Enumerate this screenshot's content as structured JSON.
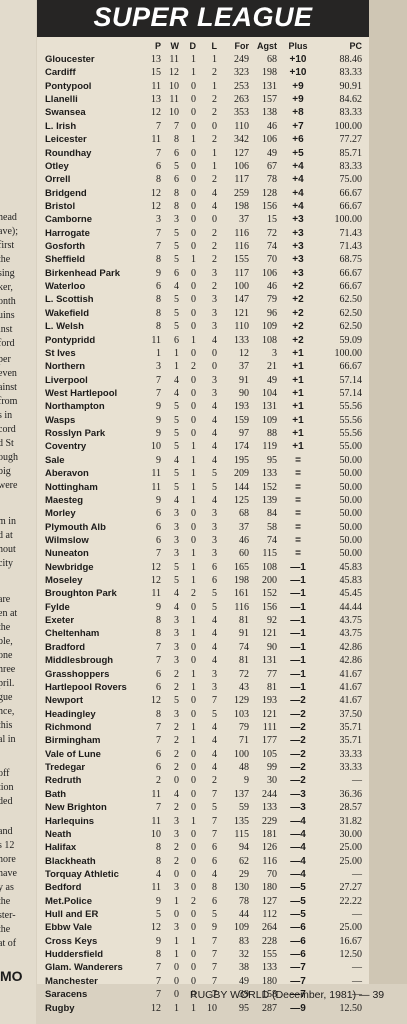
{
  "banner_title": "SUPER LEAGUE",
  "columns": {
    "p": "P",
    "w": "W",
    "d": "D",
    "l": "L",
    "for": "For",
    "agst": "Agst",
    "plus": "Plus",
    "pc": "PC"
  },
  "rows": [
    {
      "team": "Gloucester",
      "p": "13",
      "w": "11",
      "d": "1",
      "l": "1",
      "for": "249",
      "agst": "68",
      "plus": "+10",
      "pc": "88.46"
    },
    {
      "team": "Cardiff",
      "p": "15",
      "w": "12",
      "d": "1",
      "l": "2",
      "for": "323",
      "agst": "198",
      "plus": "+10",
      "pc": "83.33"
    },
    {
      "team": "Pontypool",
      "p": "11",
      "w": "10",
      "d": "0",
      "l": "1",
      "for": "253",
      "agst": "131",
      "plus": "+9",
      "pc": "90.91"
    },
    {
      "team": "Llanelli",
      "p": "13",
      "w": "11",
      "d": "0",
      "l": "2",
      "for": "263",
      "agst": "157",
      "plus": "+9",
      "pc": "84.62"
    },
    {
      "team": "Swansea",
      "p": "12",
      "w": "10",
      "d": "0",
      "l": "2",
      "for": "353",
      "agst": "138",
      "plus": "+8",
      "pc": "83.33"
    },
    {
      "team": "L. Irish",
      "p": "7",
      "w": "7",
      "d": "0",
      "l": "0",
      "for": "110",
      "agst": "46",
      "plus": "+7",
      "pc": "100.00"
    },
    {
      "team": "Leicester",
      "p": "11",
      "w": "8",
      "d": "1",
      "l": "2",
      "for": "342",
      "agst": "106",
      "plus": "+6",
      "pc": "77.27"
    },
    {
      "team": "Roundhay",
      "p": "7",
      "w": "6",
      "d": "0",
      "l": "1",
      "for": "127",
      "agst": "49",
      "plus": "+5",
      "pc": "85.71"
    },
    {
      "team": "Otley",
      "p": "6",
      "w": "5",
      "d": "0",
      "l": "1",
      "for": "106",
      "agst": "67",
      "plus": "+4",
      "pc": "83.33"
    },
    {
      "team": "Orrell",
      "p": "8",
      "w": "6",
      "d": "0",
      "l": "2",
      "for": "117",
      "agst": "78",
      "plus": "+4",
      "pc": "75.00"
    },
    {
      "team": "Bridgend",
      "p": "12",
      "w": "8",
      "d": "0",
      "l": "4",
      "for": "259",
      "agst": "128",
      "plus": "+4",
      "pc": "66.67"
    },
    {
      "team": "Bristol",
      "p": "12",
      "w": "8",
      "d": "0",
      "l": "4",
      "for": "198",
      "agst": "156",
      "plus": "+4",
      "pc": "66.67"
    },
    {
      "team": "Camborne",
      "p": "3",
      "w": "3",
      "d": "0",
      "l": "0",
      "for": "37",
      "agst": "15",
      "plus": "+3",
      "pc": "100.00"
    },
    {
      "team": "Harrogate",
      "p": "7",
      "w": "5",
      "d": "0",
      "l": "2",
      "for": "116",
      "agst": "72",
      "plus": "+3",
      "pc": "71.43"
    },
    {
      "team": "Gosforth",
      "p": "7",
      "w": "5",
      "d": "0",
      "l": "2",
      "for": "116",
      "agst": "74",
      "plus": "+3",
      "pc": "71.43"
    },
    {
      "team": "Sheffield",
      "p": "8",
      "w": "5",
      "d": "1",
      "l": "2",
      "for": "155",
      "agst": "70",
      "plus": "+3",
      "pc": "68.75"
    },
    {
      "team": "Birkenhead Park",
      "p": "9",
      "w": "6",
      "d": "0",
      "l": "3",
      "for": "117",
      "agst": "106",
      "plus": "+3",
      "pc": "66.67"
    },
    {
      "team": "Waterloo",
      "p": "6",
      "w": "4",
      "d": "0",
      "l": "2",
      "for": "100",
      "agst": "46",
      "plus": "+2",
      "pc": "66.67"
    },
    {
      "team": "L. Scottish",
      "p": "8",
      "w": "5",
      "d": "0",
      "l": "3",
      "for": "147",
      "agst": "79",
      "plus": "+2",
      "pc": "62.50"
    },
    {
      "team": "Wakefield",
      "p": "8",
      "w": "5",
      "d": "0",
      "l": "3",
      "for": "121",
      "agst": "96",
      "plus": "+2",
      "pc": "62.50"
    },
    {
      "team": "L. Welsh",
      "p": "8",
      "w": "5",
      "d": "0",
      "l": "3",
      "for": "110",
      "agst": "109",
      "plus": "+2",
      "pc": "62.50"
    },
    {
      "team": "Pontypridd",
      "p": "11",
      "w": "6",
      "d": "1",
      "l": "4",
      "for": "133",
      "agst": "108",
      "plus": "+2",
      "pc": "59.09"
    },
    {
      "team": "St Ives",
      "p": "1",
      "w": "1",
      "d": "0",
      "l": "0",
      "for": "12",
      "agst": "3",
      "plus": "+1",
      "pc": "100.00"
    },
    {
      "team": "Northern",
      "p": "3",
      "w": "1",
      "d": "2",
      "l": "0",
      "for": "37",
      "agst": "21",
      "plus": "+1",
      "pc": "66.67"
    },
    {
      "team": "Liverpool",
      "p": "7",
      "w": "4",
      "d": "0",
      "l": "3",
      "for": "91",
      "agst": "49",
      "plus": "+1",
      "pc": "57.14"
    },
    {
      "team": "West Hartlepool",
      "p": "7",
      "w": "4",
      "d": "0",
      "l": "3",
      "for": "90",
      "agst": "104",
      "plus": "+1",
      "pc": "57.14"
    },
    {
      "team": "Northampton",
      "p": "9",
      "w": "5",
      "d": "0",
      "l": "4",
      "for": "193",
      "agst": "131",
      "plus": "+1",
      "pc": "55.56"
    },
    {
      "team": "Wasps",
      "p": "9",
      "w": "5",
      "d": "0",
      "l": "4",
      "for": "159",
      "agst": "109",
      "plus": "+1",
      "pc": "55.56"
    },
    {
      "team": "Rosslyn Park",
      "p": "9",
      "w": "5",
      "d": "0",
      "l": "4",
      "for": "97",
      "agst": "88",
      "plus": "+1",
      "pc": "55.56"
    },
    {
      "team": "Coventry",
      "p": "10",
      "w": "5",
      "d": "1",
      "l": "4",
      "for": "174",
      "agst": "119",
      "plus": "+1",
      "pc": "55.00"
    },
    {
      "team": "Sale",
      "p": "9",
      "w": "4",
      "d": "1",
      "l": "4",
      "for": "195",
      "agst": "95",
      "plus": "=",
      "pc": "50.00"
    },
    {
      "team": "Aberavon",
      "p": "11",
      "w": "5",
      "d": "1",
      "l": "5",
      "for": "209",
      "agst": "133",
      "plus": "=",
      "pc": "50.00"
    },
    {
      "team": "Nottingham",
      "p": "11",
      "w": "5",
      "d": "1",
      "l": "5",
      "for": "144",
      "agst": "152",
      "plus": "=",
      "pc": "50.00"
    },
    {
      "team": "Maesteg",
      "p": "9",
      "w": "4",
      "d": "1",
      "l": "4",
      "for": "125",
      "agst": "139",
      "plus": "=",
      "pc": "50.00"
    },
    {
      "team": "Morley",
      "p": "6",
      "w": "3",
      "d": "0",
      "l": "3",
      "for": "68",
      "agst": "84",
      "plus": "=",
      "pc": "50.00"
    },
    {
      "team": "Plymouth Alb",
      "p": "6",
      "w": "3",
      "d": "0",
      "l": "3",
      "for": "37",
      "agst": "58",
      "plus": "=",
      "pc": "50.00"
    },
    {
      "team": "Wilmslow",
      "p": "6",
      "w": "3",
      "d": "0",
      "l": "3",
      "for": "46",
      "agst": "74",
      "plus": "=",
      "pc": "50.00"
    },
    {
      "team": "Nuneaton",
      "p": "7",
      "w": "3",
      "d": "1",
      "l": "3",
      "for": "60",
      "agst": "115",
      "plus": "=",
      "pc": "50.00"
    },
    {
      "team": "Newbridge",
      "p": "12",
      "w": "5",
      "d": "1",
      "l": "6",
      "for": "165",
      "agst": "108",
      "plus": "—1",
      "pc": "45.83"
    },
    {
      "team": "Moseley",
      "p": "12",
      "w": "5",
      "d": "1",
      "l": "6",
      "for": "198",
      "agst": "200",
      "plus": "—1",
      "pc": "45.83"
    },
    {
      "team": "Broughton Park",
      "p": "11",
      "w": "4",
      "d": "2",
      "l": "5",
      "for": "161",
      "agst": "152",
      "plus": "—1",
      "pc": "45.45"
    },
    {
      "team": "Fylde",
      "p": "9",
      "w": "4",
      "d": "0",
      "l": "5",
      "for": "116",
      "agst": "156",
      "plus": "—1",
      "pc": "44.44"
    },
    {
      "team": "Exeter",
      "p": "8",
      "w": "3",
      "d": "1",
      "l": "4",
      "for": "81",
      "agst": "92",
      "plus": "—1",
      "pc": "43.75"
    },
    {
      "team": "Cheltenham",
      "p": "8",
      "w": "3",
      "d": "1",
      "l": "4",
      "for": "91",
      "agst": "121",
      "plus": "—1",
      "pc": "43.75"
    },
    {
      "team": "Bradford",
      "p": "7",
      "w": "3",
      "d": "0",
      "l": "4",
      "for": "74",
      "agst": "90",
      "plus": "—1",
      "pc": "42.86"
    },
    {
      "team": "Middlesbrough",
      "p": "7",
      "w": "3",
      "d": "0",
      "l": "4",
      "for": "81",
      "agst": "131",
      "plus": "—1",
      "pc": "42.86"
    },
    {
      "team": "Grasshoppers",
      "p": "6",
      "w": "2",
      "d": "1",
      "l": "3",
      "for": "72",
      "agst": "77",
      "plus": "—1",
      "pc": "41.67"
    },
    {
      "team": "Hartlepool Rovers",
      "p": "6",
      "w": "2",
      "d": "1",
      "l": "3",
      "for": "43",
      "agst": "81",
      "plus": "—1",
      "pc": "41.67"
    },
    {
      "team": "Newport",
      "p": "12",
      "w": "5",
      "d": "0",
      "l": "7",
      "for": "129",
      "agst": "193",
      "plus": "—2",
      "pc": "41.67"
    },
    {
      "team": "Headingley",
      "p": "8",
      "w": "3",
      "d": "0",
      "l": "5",
      "for": "103",
      "agst": "121",
      "plus": "—2",
      "pc": "37.50"
    },
    {
      "team": "Richmond",
      "p": "7",
      "w": "2",
      "d": "1",
      "l": "4",
      "for": "79",
      "agst": "111",
      "plus": "—2",
      "pc": "35.71"
    },
    {
      "team": "Birmingham",
      "p": "7",
      "w": "2",
      "d": "1",
      "l": "4",
      "for": "71",
      "agst": "177",
      "plus": "—2",
      "pc": "35.71"
    },
    {
      "team": "Vale of Lune",
      "p": "6",
      "w": "2",
      "d": "0",
      "l": "4",
      "for": "100",
      "agst": "105",
      "plus": "—2",
      "pc": "33.33"
    },
    {
      "team": "Tredegar",
      "p": "6",
      "w": "2",
      "d": "0",
      "l": "4",
      "for": "48",
      "agst": "99",
      "plus": "—2",
      "pc": "33.33"
    },
    {
      "team": "Redruth",
      "p": "2",
      "w": "0",
      "d": "0",
      "l": "2",
      "for": "9",
      "agst": "30",
      "plus": "—2",
      "pc": "—"
    },
    {
      "team": "Bath",
      "p": "11",
      "w": "4",
      "d": "0",
      "l": "7",
      "for": "137",
      "agst": "244",
      "plus": "—3",
      "pc": "36.36"
    },
    {
      "team": "New Brighton",
      "p": "7",
      "w": "2",
      "d": "0",
      "l": "5",
      "for": "59",
      "agst": "133",
      "plus": "—3",
      "pc": "28.57"
    },
    {
      "team": "Harlequins",
      "p": "11",
      "w": "3",
      "d": "1",
      "l": "7",
      "for": "135",
      "agst": "229",
      "plus": "—4",
      "pc": "31.82"
    },
    {
      "team": "Neath",
      "p": "10",
      "w": "3",
      "d": "0",
      "l": "7",
      "for": "115",
      "agst": "181",
      "plus": "—4",
      "pc": "30.00"
    },
    {
      "team": "Halifax",
      "p": "8",
      "w": "2",
      "d": "0",
      "l": "6",
      "for": "94",
      "agst": "126",
      "plus": "—4",
      "pc": "25.00"
    },
    {
      "team": "Blackheath",
      "p": "8",
      "w": "2",
      "d": "0",
      "l": "6",
      "for": "62",
      "agst": "116",
      "plus": "—4",
      "pc": "25.00"
    },
    {
      "team": "Torquay Athletic",
      "p": "4",
      "w": "0",
      "d": "0",
      "l": "4",
      "for": "29",
      "agst": "70",
      "plus": "—4",
      "pc": "—"
    },
    {
      "team": "Bedford",
      "p": "11",
      "w": "3",
      "d": "0",
      "l": "8",
      "for": "130",
      "agst": "180",
      "plus": "—5",
      "pc": "27.27"
    },
    {
      "team": "Met.Police",
      "p": "9",
      "w": "1",
      "d": "2",
      "l": "6",
      "for": "78",
      "agst": "127",
      "plus": "—5",
      "pc": "22.22"
    },
    {
      "team": "Hull and ER",
      "p": "5",
      "w": "0",
      "d": "0",
      "l": "5",
      "for": "44",
      "agst": "112",
      "plus": "—5",
      "pc": "—"
    },
    {
      "team": "Ebbw Vale",
      "p": "12",
      "w": "3",
      "d": "0",
      "l": "9",
      "for": "109",
      "agst": "264",
      "plus": "—6",
      "pc": "25.00"
    },
    {
      "team": "Cross Keys",
      "p": "9",
      "w": "1",
      "d": "1",
      "l": "7",
      "for": "83",
      "agst": "228",
      "plus": "—6",
      "pc": "16.67"
    },
    {
      "team": "Huddersfield",
      "p": "8",
      "w": "1",
      "d": "0",
      "l": "7",
      "for": "32",
      "agst": "155",
      "plus": "—6",
      "pc": "12.50"
    },
    {
      "team": "Glam. Wanderers",
      "p": "7",
      "w": "0",
      "d": "0",
      "l": "7",
      "for": "38",
      "agst": "133",
      "plus": "—7",
      "pc": "—"
    },
    {
      "team": "Manchester",
      "p": "7",
      "w": "0",
      "d": "0",
      "l": "7",
      "for": "49",
      "agst": "180",
      "plus": "—7",
      "pc": "—"
    },
    {
      "team": "Saracens",
      "p": "7",
      "w": "0",
      "d": "0",
      "l": "7",
      "for": "39",
      "agst": "158",
      "plus": "—7",
      "pc": "—"
    },
    {
      "team": "Rugby",
      "p": "12",
      "w": "1",
      "d": "1",
      "l": "10",
      "for": "95",
      "agst": "287",
      "plus": "—9",
      "pc": "12.50"
    }
  ],
  "footer": "RUGBY WORLD (December, 1981) — 39",
  "left_fragments": [
    "head",
    "ave);",
    "first",
    "the",
    "sing",
    "ker,",
    "onth",
    "uins",
    "inst",
    "ford",
    "per",
    "even",
    "ainst",
    "from",
    "s in",
    "cord",
    "d St",
    "ough",
    "big",
    "were",
    "m in",
    "d at",
    "hout",
    "city",
    "are",
    "en at",
    "the",
    "ble,",
    "one",
    "hree",
    "pril.",
    "gue",
    "nce,",
    "this",
    "al in",
    "off",
    "tion",
    "ded",
    "and",
    "s 12",
    "nore",
    "have",
    "y as",
    "the",
    "ster-",
    "the",
    "at of"
  ],
  "left_fragment_brand": "MO"
}
